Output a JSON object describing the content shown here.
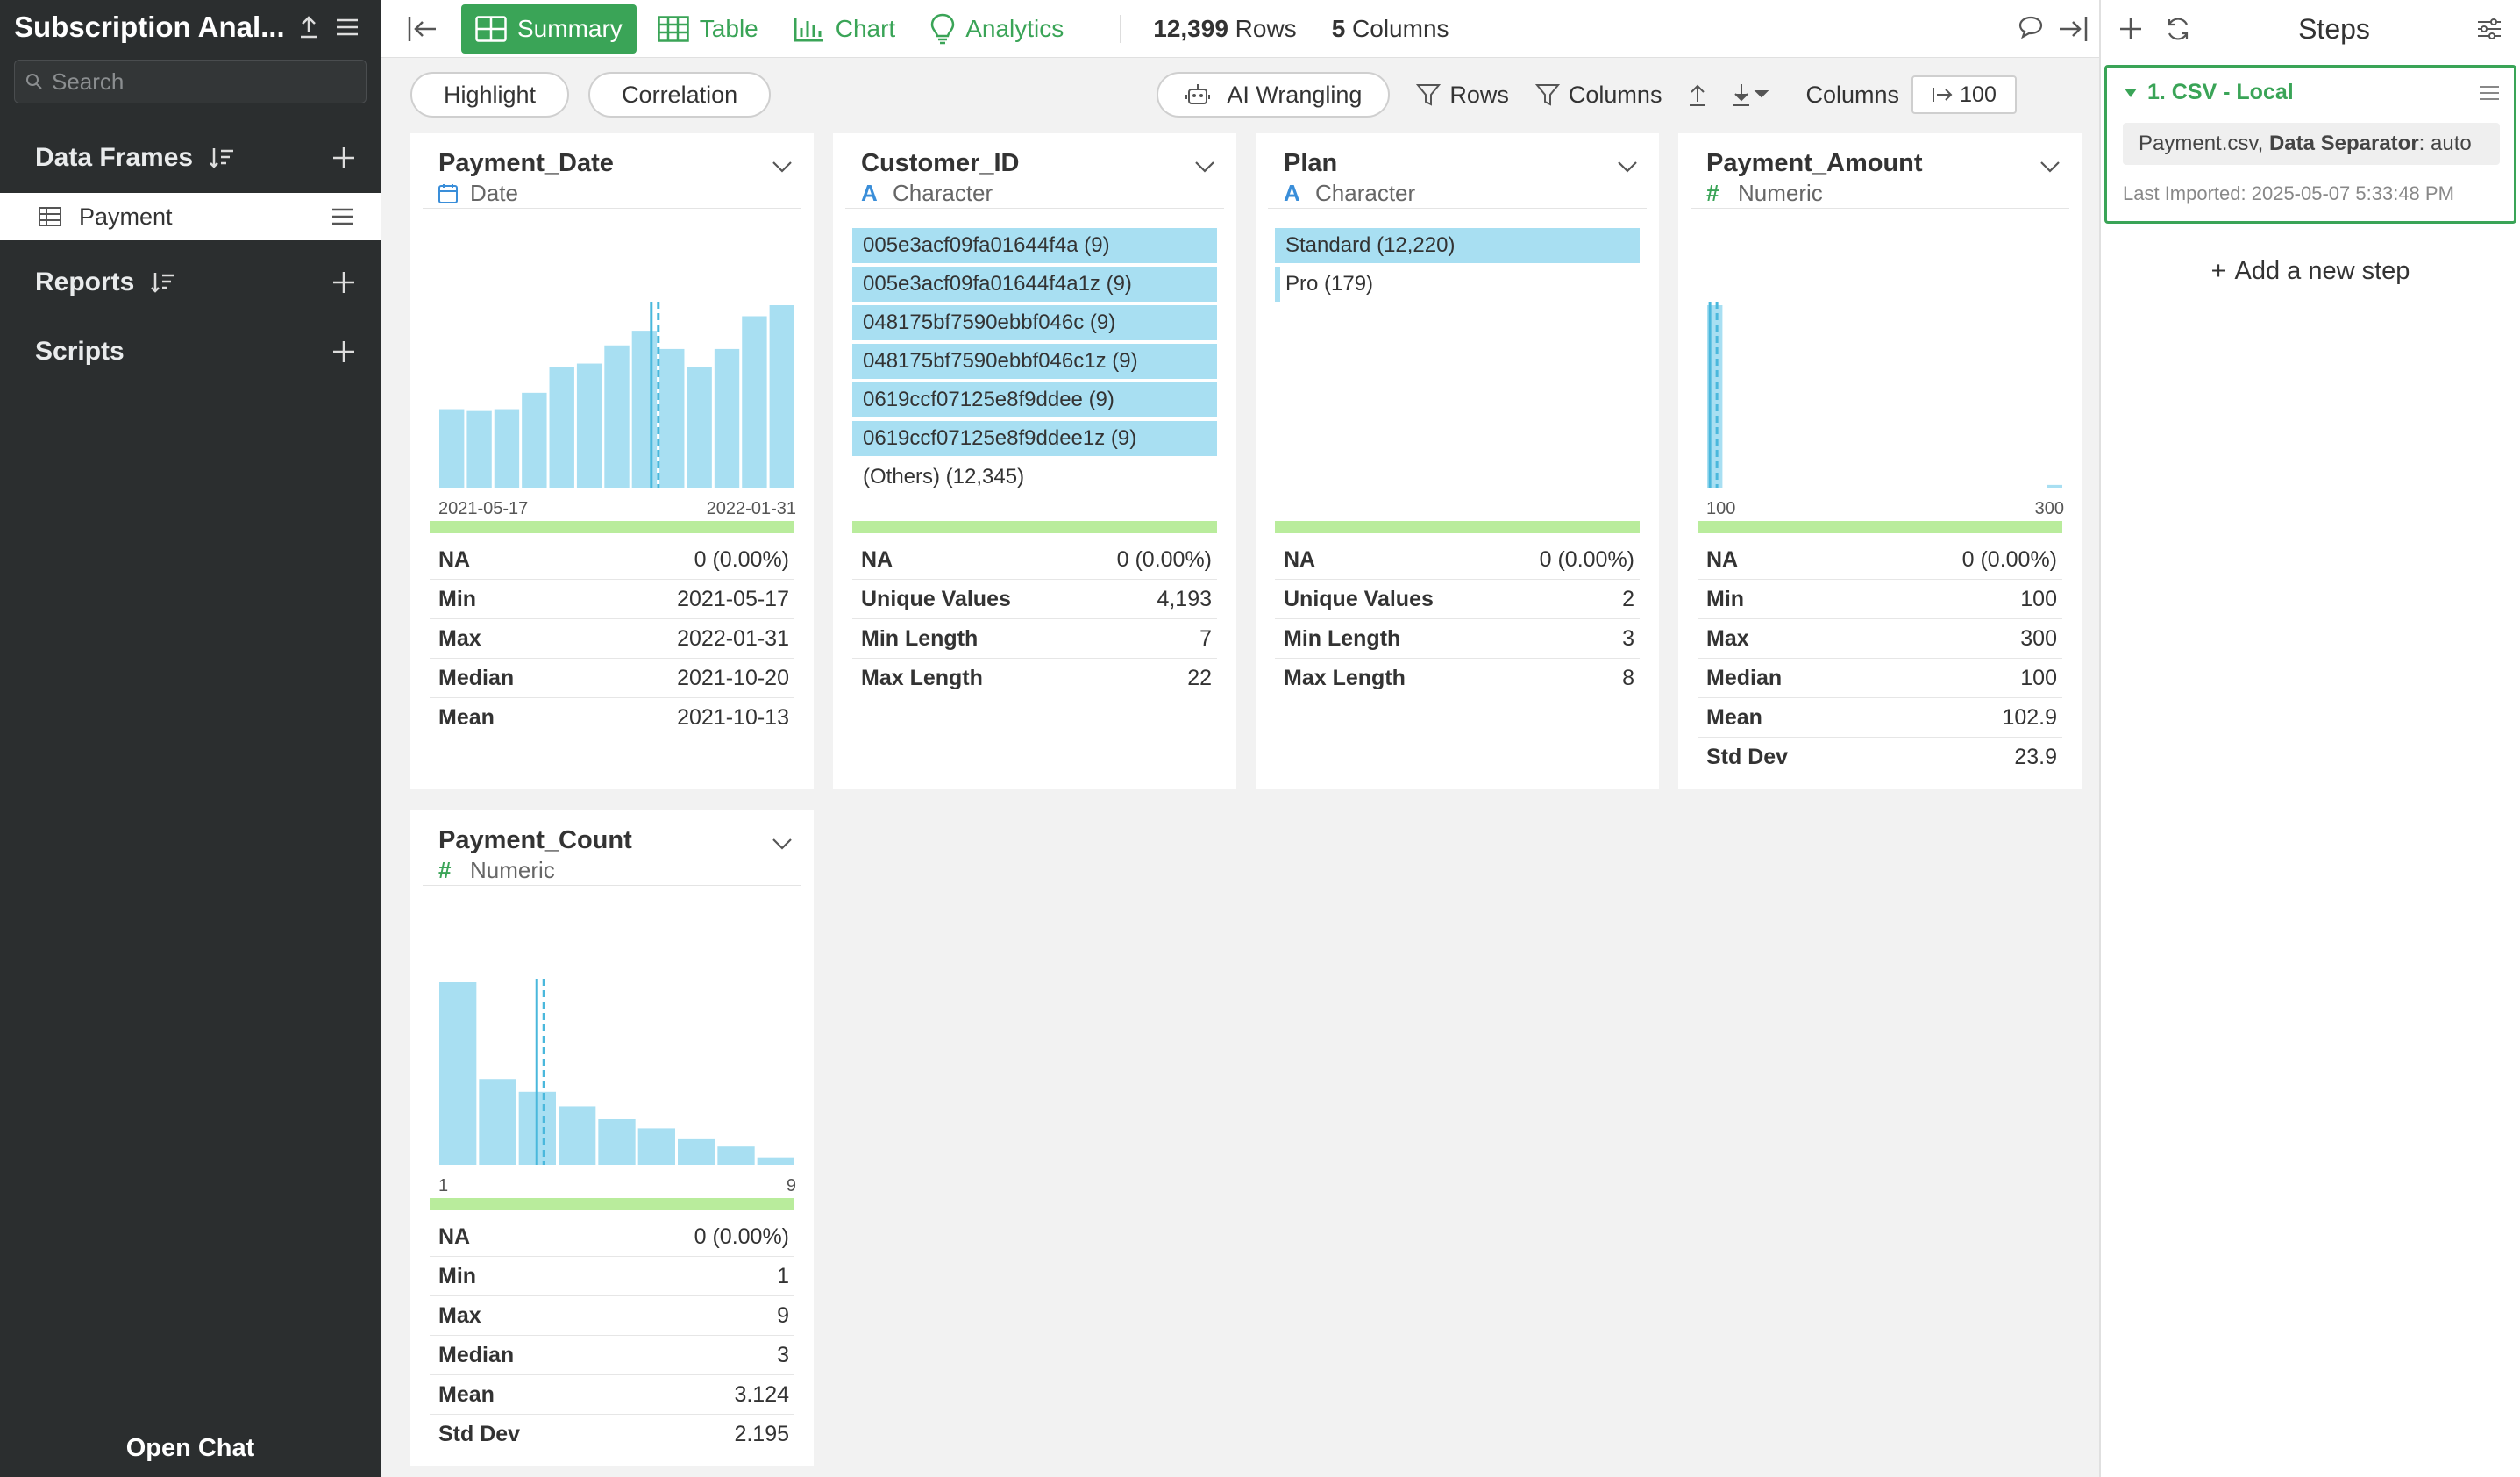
{
  "app": {
    "title": "Subscription Anal..."
  },
  "sidebar": {
    "search_placeholder": "Search",
    "sections": {
      "data_frames": "Data Frames",
      "reports": "Reports",
      "scripts": "Scripts"
    },
    "data_frame_items": [
      {
        "label": "Payment"
      }
    ],
    "open_chat": "Open Chat"
  },
  "toolbar": {
    "tabs": [
      {
        "label": "Summary",
        "icon": "grid-icon",
        "active": true
      },
      {
        "label": "Table",
        "icon": "table-icon"
      },
      {
        "label": "Chart",
        "icon": "bar-chart-icon"
      },
      {
        "label": "Analytics",
        "icon": "bulb-icon"
      }
    ],
    "rows_count": "12,399",
    "rows_label": "Rows",
    "cols_count": "5",
    "cols_label": "Columns"
  },
  "subbar": {
    "highlight": "Highlight",
    "correlation": "Correlation",
    "ai_wrangling": "AI Wrangling",
    "rows_filter": "Rows",
    "columns_filter": "Columns",
    "columns_label": "Columns",
    "columns_value": "100"
  },
  "cards": {
    "payment_date": {
      "title": "Payment_Date",
      "type": "Date",
      "hist": {
        "values": [
          0.43,
          0.42,
          0.43,
          0.52,
          0.66,
          0.68,
          0.78,
          0.86,
          0.76,
          0.66,
          0.76,
          0.94,
          1.0
        ],
        "mark": 0.6,
        "xmin": "2021-05-17",
        "xmax": "2022-01-31"
      },
      "stats": [
        {
          "k": "NA",
          "v": "0 (0.00%)"
        },
        {
          "k": "Min",
          "v": "2021-05-17"
        },
        {
          "k": "Max",
          "v": "2022-01-31"
        },
        {
          "k": "Median",
          "v": "2021-10-20"
        },
        {
          "k": "Mean",
          "v": "2021-10-13"
        }
      ]
    },
    "customer_id": {
      "title": "Customer_ID",
      "type": "Character",
      "categories": [
        {
          "label": "005e3acf09fa01644f4a (9)",
          "fill": 1
        },
        {
          "label": "005e3acf09fa01644f4a1z (9)",
          "fill": 1
        },
        {
          "label": "048175bf7590ebbf046c (9)",
          "fill": 1
        },
        {
          "label": "048175bf7590ebbf046c1z (9)",
          "fill": 1
        },
        {
          "label": "0619ccf07125e8f9ddee (9)",
          "fill": 1
        },
        {
          "label": "0619ccf07125e8f9ddee1z (9)",
          "fill": 1
        },
        {
          "label": "(Others) (12,345)",
          "fill": 0
        }
      ],
      "stats": [
        {
          "k": "NA",
          "v": "0 (0.00%)"
        },
        {
          "k": "Unique Values",
          "v": "4,193"
        },
        {
          "k": "Min Length",
          "v": "7"
        },
        {
          "k": "Max Length",
          "v": "22"
        }
      ]
    },
    "plan": {
      "title": "Plan",
      "type": "Character",
      "categories": [
        {
          "label": "Standard (12,220)",
          "fill": 1
        },
        {
          "label": "Pro (179)",
          "fill": 0.015
        }
      ],
      "stats": [
        {
          "k": "NA",
          "v": "0 (0.00%)"
        },
        {
          "k": "Unique Values",
          "v": "2"
        },
        {
          "k": "Min Length",
          "v": "3"
        },
        {
          "k": "Max Length",
          "v": "8"
        }
      ]
    },
    "payment_amount": {
      "title": "Payment_Amount",
      "type": "Numeric",
      "hist": {
        "values": [
          1.0,
          0,
          0,
          0,
          0,
          0,
          0,
          0,
          0,
          0,
          0,
          0,
          0,
          0,
          0,
          0,
          0,
          0,
          0,
          0.015
        ],
        "mark": 0.015,
        "xmin": "100",
        "xmax": "300"
      },
      "stats": [
        {
          "k": "NA",
          "v": "0 (0.00%)"
        },
        {
          "k": "Min",
          "v": "100"
        },
        {
          "k": "Max",
          "v": "300"
        },
        {
          "k": "Median",
          "v": "100"
        },
        {
          "k": "Mean",
          "v": "102.9"
        },
        {
          "k": "Std Dev",
          "v": "23.9"
        }
      ]
    },
    "payment_count": {
      "title": "Payment_Count",
      "type": "Numeric",
      "hist": {
        "values": [
          1.0,
          0.47,
          0.4,
          0.32,
          0.25,
          0.2,
          0.14,
          0.1,
          0.04
        ],
        "mark": 0.28,
        "xmin": "1",
        "xmax": "9"
      },
      "stats": [
        {
          "k": "NA",
          "v": "0 (0.00%)"
        },
        {
          "k": "Min",
          "v": "1"
        },
        {
          "k": "Max",
          "v": "9"
        },
        {
          "k": "Median",
          "v": "3"
        },
        {
          "k": "Mean",
          "v": "3.124"
        },
        {
          "k": "Std Dev",
          "v": "2.195"
        }
      ]
    }
  },
  "steps": {
    "title": "Steps",
    "step1": {
      "name": "1. CSV - Local",
      "file": "Payment.csv,",
      "sep_key": "Data Separator",
      "sep_val": ": auto",
      "time": "Last Imported: 2025-05-07 5:33:48 PM"
    },
    "add_step": "Add a new step"
  },
  "colors": {
    "accent": "#3aa457",
    "bar": "#a8dff2",
    "mark": "#4ab8dc",
    "green_bar": "#b9ec9c",
    "sidebar": "#2b2e2f"
  }
}
